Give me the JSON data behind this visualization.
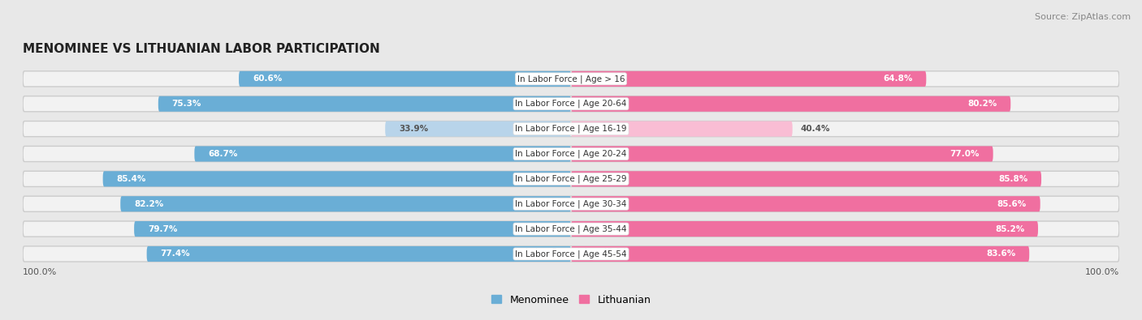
{
  "title": "MENOMINEE VS LITHUANIAN LABOR PARTICIPATION",
  "source": "Source: ZipAtlas.com",
  "categories": [
    "In Labor Force | Age > 16",
    "In Labor Force | Age 20-64",
    "In Labor Force | Age 16-19",
    "In Labor Force | Age 20-24",
    "In Labor Force | Age 25-29",
    "In Labor Force | Age 30-34",
    "In Labor Force | Age 35-44",
    "In Labor Force | Age 45-54"
  ],
  "menominee_values": [
    60.6,
    75.3,
    33.9,
    68.7,
    85.4,
    82.2,
    79.7,
    77.4
  ],
  "lithuanian_values": [
    64.8,
    80.2,
    40.4,
    77.0,
    85.8,
    85.6,
    85.2,
    83.6
  ],
  "menominee_color": "#6aaed6",
  "menominee_color_light": "#b8d4ea",
  "lithuanian_color": "#f06fa0",
  "lithuanian_color_light": "#f9bdd4",
  "bar_height": 0.62,
  "xlim": 100,
  "legend_labels": [
    "Menominee",
    "Lithuanian"
  ],
  "background_color": "#e8e8e8",
  "row_bg_color": "#f2f2f2",
  "title_color": "#222222",
  "source_color": "#888888",
  "label_color_dark": "#555555",
  "threshold_strong": 55
}
